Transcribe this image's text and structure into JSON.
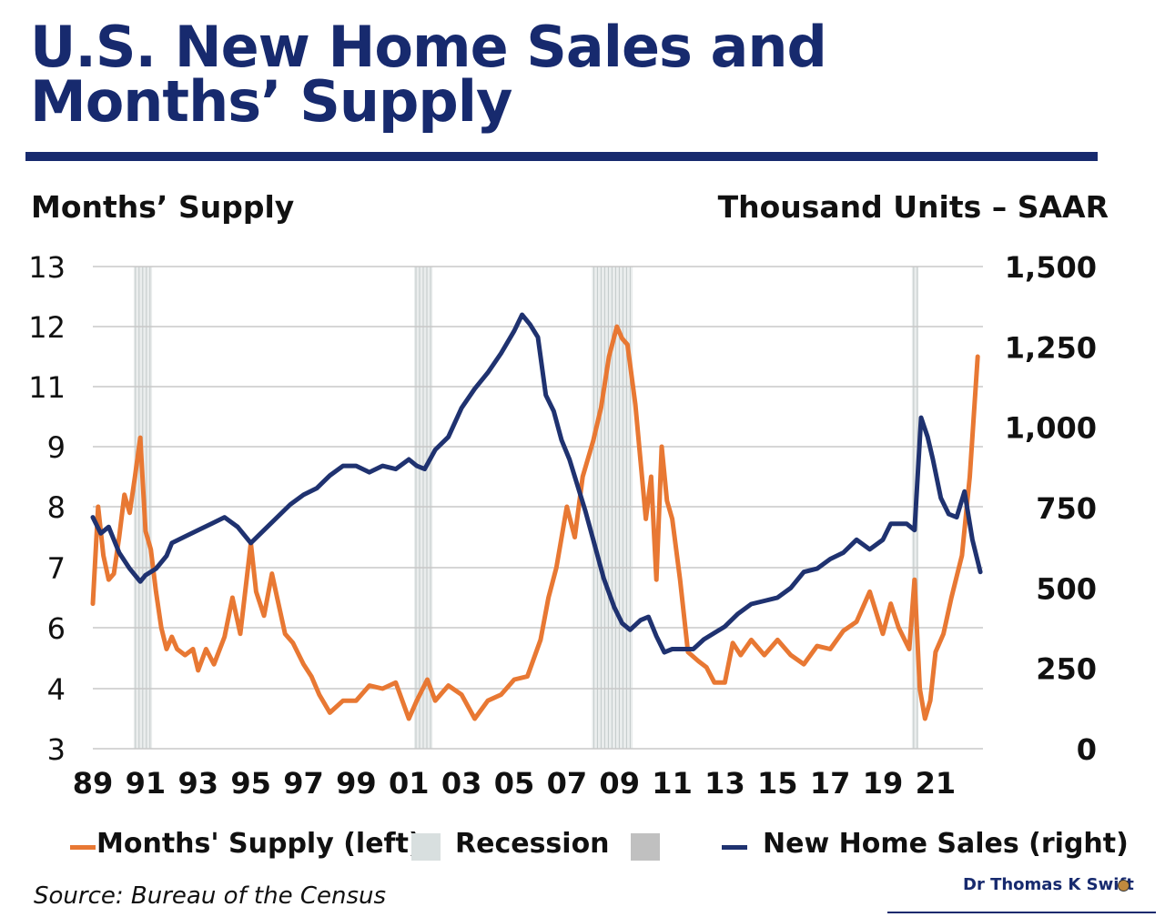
{
  "title_line1": "U.S. New Home Sales and",
  "title_line2": "Months’ Supply",
  "left_axis_title": "Months’ Supply",
  "right_axis_title": "Thousand Units – SAAR",
  "source": "Source: Bureau of the Census",
  "credit": "Dr Thomas K Swift",
  "colors": {
    "title": "#172a6e",
    "supply": "#e87833",
    "sales": "#1f3270",
    "recession_light": "#d8dfdf",
    "recession_dark": "#c0c0c0"
  },
  "legend": {
    "supply": "Months' Supply (left)",
    "recession": "Recession",
    "sales": "New Home Sales (right)"
  },
  "chart_data": {
    "type": "line",
    "x_ticks": [
      "89",
      "91",
      "93",
      "95",
      "97",
      "99",
      "01",
      "03",
      "05",
      "07",
      "09",
      "11",
      "13",
      "15",
      "17",
      "19",
      "21"
    ],
    "x_range": [
      1989,
      2022.8
    ],
    "left_axis": {
      "ticks": [
        "13",
        "12",
        "11",
        "9",
        "8",
        "7",
        "6",
        "4",
        "3"
      ],
      "range": [
        3,
        13
      ]
    },
    "right_axis": {
      "ticks": [
        "1,500",
        "1,250",
        "1,000",
        "750",
        "500",
        "250",
        "0"
      ],
      "range": [
        0,
        1500
      ]
    },
    "grid": true,
    "recessions": [
      [
        1990.55,
        1991.25
      ],
      [
        2001.2,
        2001.9
      ],
      [
        2007.95,
        2009.5
      ],
      [
        2020.1,
        2020.35
      ]
    ],
    "series": [
      {
        "name": "Months' Supply (left)",
        "axis": "left",
        "x": [
          1989,
          1989.2,
          1989.4,
          1989.6,
          1989.8,
          1990,
          1990.2,
          1990.4,
          1990.6,
          1990.8,
          1991,
          1991.2,
          1991.4,
          1991.6,
          1991.8,
          1992,
          1992.2,
          1992.5,
          1992.8,
          1993,
          1993.3,
          1993.6,
          1994,
          1994.3,
          1994.6,
          1995,
          1995.2,
          1995.5,
          1995.8,
          1996,
          1996.3,
          1996.6,
          1997,
          1997.3,
          1997.6,
          1998,
          1998.5,
          1999,
          1999.5,
          2000,
          2000.5,
          2001,
          2001.3,
          2001.7,
          2002,
          2002.5,
          2003,
          2003.5,
          2004,
          2004.5,
          2005,
          2005.5,
          2006,
          2006.3,
          2006.6,
          2007,
          2007.3,
          2007.6,
          2008,
          2008.3,
          2008.6,
          2008.9,
          2009.1,
          2009.3,
          2009.6,
          2010,
          2010.2,
          2010.4,
          2010.6,
          2010.8,
          2011,
          2011.3,
          2011.6,
          2012,
          2012.3,
          2012.6,
          2013,
          2013.3,
          2013.6,
          2014,
          2014.5,
          2015,
          2015.5,
          2016,
          2016.5,
          2017,
          2017.5,
          2018,
          2018.5,
          2019,
          2019.3,
          2019.6,
          2020,
          2020.2,
          2020.4,
          2020.6,
          2020.8,
          2021,
          2021.3,
          2021.6,
          2022,
          2022.3,
          2022.6
        ],
        "values": [
          6.4,
          8,
          7.2,
          6.8,
          6.9,
          7.5,
          8.2,
          7.9,
          8.5,
          9.3,
          7.6,
          7.3,
          6.6,
          6,
          5.3,
          5.7,
          5.3,
          5.1,
          5.3,
          4.6,
          5.3,
          4.8,
          5.7,
          6.5,
          5.8,
          7.4,
          6.6,
          6.2,
          6.9,
          6.5,
          5.8,
          5.5,
          4.8,
          4.4,
          3.9,
          3.6,
          3.8,
          3.8,
          4.1,
          4,
          4.2,
          3.5,
          3.8,
          4.3,
          3.8,
          4.1,
          3.9,
          3.5,
          3.8,
          3.9,
          4.3,
          4.4,
          5.6,
          6.5,
          7,
          8,
          7.5,
          8.5,
          9.2,
          10.3,
          11.5,
          12,
          11.8,
          11.7,
          10.4,
          7.8,
          8.5,
          6.8,
          9,
          8.1,
          7.8,
          6.8,
          5.2,
          4.9,
          4.7,
          4.2,
          4.2,
          5.5,
          5.1,
          5.6,
          5.1,
          5.6,
          5.1,
          4.8,
          5.4,
          5.3,
          5.9,
          6.1,
          6.6,
          5.8,
          6.4,
          6,
          5.3,
          6.8,
          4,
          3.5,
          3.8,
          5.2,
          5.8,
          6.5,
          7.2,
          8.5,
          11.5
        ]
      },
      {
        "name": "New Home Sales (right)",
        "axis": "right",
        "x": [
          1989,
          1989.3,
          1989.6,
          1990,
          1990.4,
          1990.8,
          1991,
          1991.4,
          1991.8,
          1992,
          1992.5,
          1993,
          1993.5,
          1994,
          1994.5,
          1995,
          1995.5,
          1996,
          1996.5,
          1997,
          1997.5,
          1998,
          1998.5,
          1999,
          1999.5,
          2000,
          2000.5,
          2001,
          2001.3,
          2001.6,
          2002,
          2002.5,
          2003,
          2003.5,
          2004,
          2004.5,
          2005,
          2005.3,
          2005.6,
          2005.9,
          2006.2,
          2006.5,
          2006.8,
          2007.1,
          2007.4,
          2007.7,
          2008,
          2008.4,
          2008.8,
          2009.1,
          2009.4,
          2009.8,
          2010.1,
          2010.4,
          2010.7,
          2011,
          2011.4,
          2011.8,
          2012.2,
          2012.6,
          2013,
          2013.5,
          2014,
          2014.5,
          2015,
          2015.5,
          2016,
          2016.5,
          2017,
          2017.5,
          2018,
          2018.5,
          2019,
          2019.3,
          2019.6,
          2019.9,
          2020.2,
          2020.45,
          2020.7,
          2020.9,
          2021.2,
          2021.5,
          2021.8,
          2022.1,
          2022.4,
          2022.7
        ],
        "values": [
          720,
          670,
          690,
          610,
          560,
          520,
          540,
          560,
          600,
          640,
          660,
          680,
          700,
          720,
          690,
          640,
          680,
          720,
          760,
          790,
          810,
          850,
          880,
          880,
          860,
          880,
          870,
          900,
          880,
          870,
          930,
          970,
          1060,
          1120,
          1170,
          1230,
          1300,
          1350,
          1320,
          1280,
          1100,
          1050,
          960,
          900,
          820,
          740,
          650,
          530,
          440,
          390,
          370,
          400,
          410,
          350,
          300,
          310,
          310,
          310,
          340,
          360,
          380,
          420,
          450,
          460,
          470,
          500,
          550,
          560,
          590,
          610,
          650,
          620,
          650,
          700,
          700,
          700,
          680,
          1030,
          970,
          900,
          780,
          730,
          720,
          800,
          650,
          550
        ]
      }
    ]
  }
}
